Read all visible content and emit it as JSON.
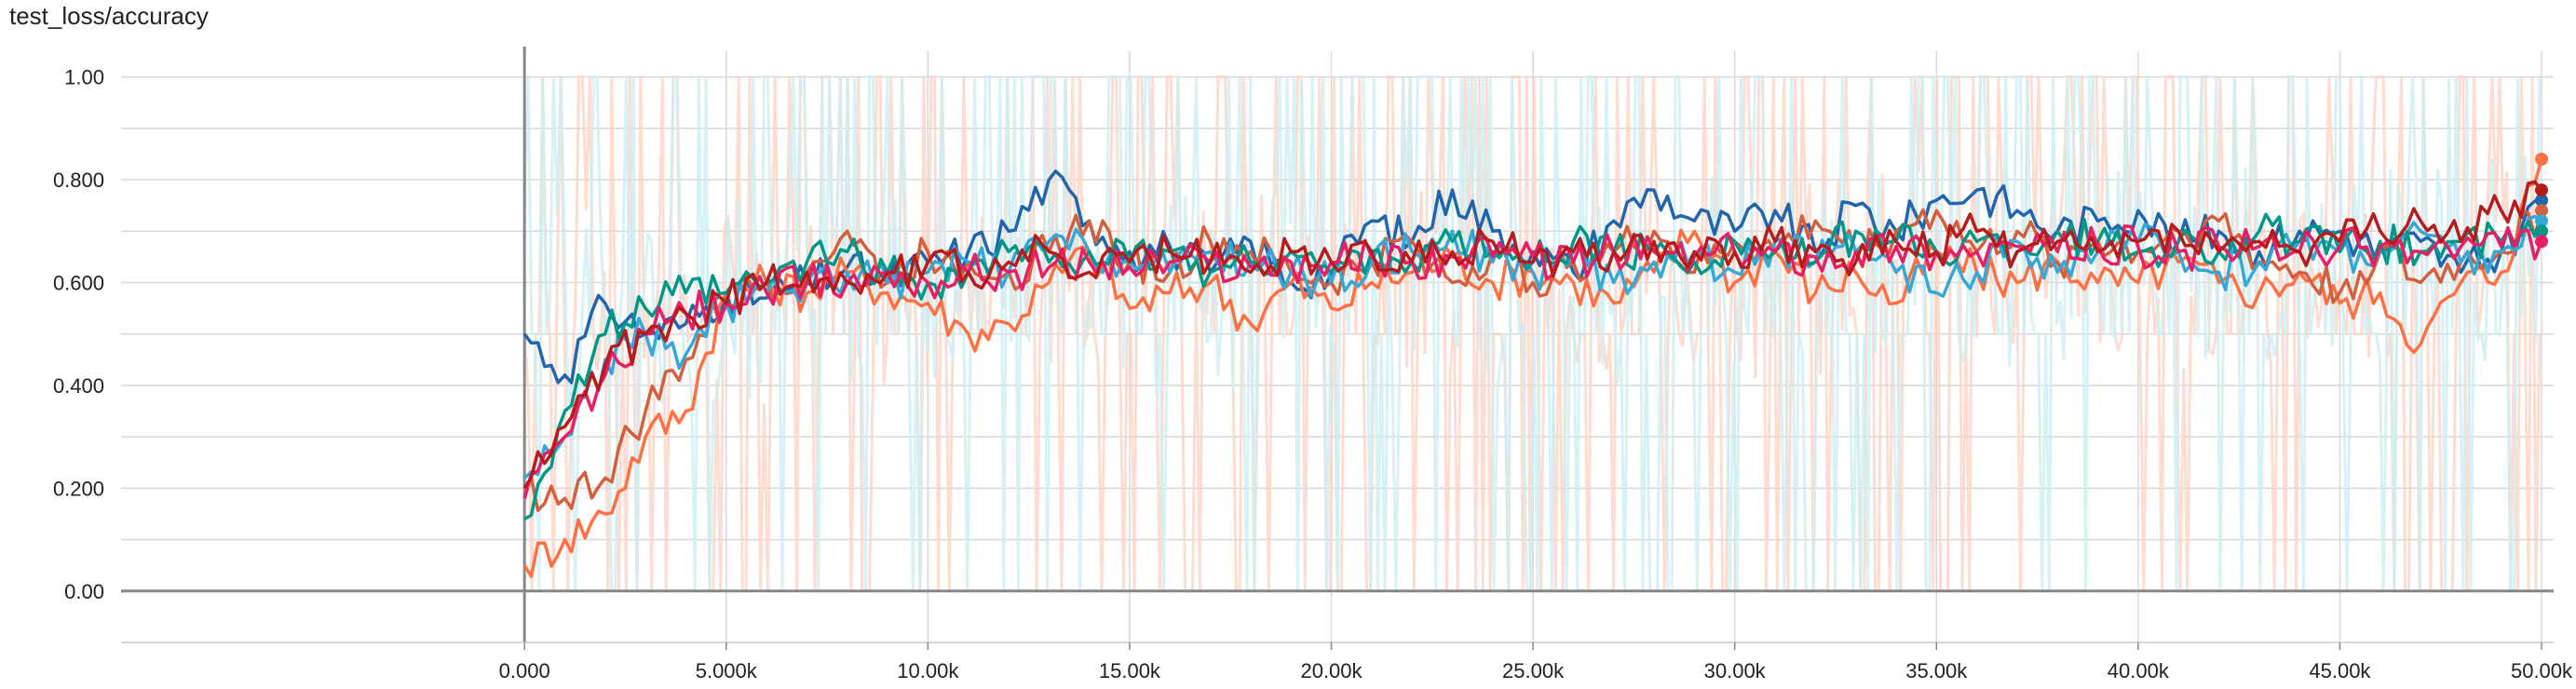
{
  "chart_data": {
    "type": "line",
    "title": "test_loss/accuracy",
    "xlabel": "",
    "ylabel": "",
    "x_range": [
      -10000,
      50300
    ],
    "y_range": [
      -0.1,
      1.05
    ],
    "x_ticks": [
      0,
      5000,
      10000,
      15000,
      20000,
      25000,
      30000,
      35000,
      40000,
      45000,
      50000
    ],
    "x_tick_labels": [
      "0.000",
      "5.000k",
      "10.00k",
      "15.00k",
      "20.00k",
      "25.00k",
      "30.00k",
      "35.00k",
      "40.00k",
      "45.00k",
      "50.00k"
    ],
    "y_ticks": [
      0,
      0.2,
      0.4,
      0.6,
      0.8,
      1.0
    ],
    "y_tick_labels": [
      "0.00",
      "0.200",
      "0.400",
      "0.600",
      "0.800",
      "1.00"
    ],
    "grid": true,
    "legend": "none",
    "raw_band_colors": [
      "#fcd5c7",
      "#cdeef3"
    ],
    "x": [
      0,
      1000,
      2000,
      3000,
      4000,
      5000,
      6000,
      7000,
      8000,
      9000,
      10000,
      11000,
      12000,
      13000,
      14000,
      15000,
      16000,
      17000,
      18000,
      19000,
      20000,
      21000,
      22000,
      23000,
      24000,
      25000,
      26000,
      27000,
      28000,
      29000,
      30000,
      31000,
      32000,
      33000,
      34000,
      35000,
      36000,
      37000,
      38000,
      39000,
      40000,
      41000,
      42000,
      43000,
      44000,
      45000,
      46000,
      47000,
      48000,
      49000,
      50000
    ],
    "series": [
      {
        "color": "#2166ac",
        "values": [
          0.5,
          0.42,
          0.56,
          0.5,
          0.52,
          0.58,
          0.57,
          0.6,
          0.63,
          0.6,
          0.64,
          0.66,
          0.7,
          0.8,
          0.72,
          0.66,
          0.67,
          0.62,
          0.68,
          0.6,
          0.62,
          0.72,
          0.68,
          0.78,
          0.7,
          0.66,
          0.62,
          0.72,
          0.78,
          0.72,
          0.7,
          0.74,
          0.66,
          0.75,
          0.7,
          0.76,
          0.78,
          0.74,
          0.7,
          0.72,
          0.74,
          0.68,
          0.7,
          0.66,
          0.7,
          0.7,
          0.66,
          0.68,
          0.62,
          0.66,
          0.76
        ]
      },
      {
        "color": "#ff7043",
        "values": [
          0.05,
          0.1,
          0.15,
          0.3,
          0.35,
          0.58,
          0.6,
          0.58,
          0.62,
          0.58,
          0.56,
          0.5,
          0.52,
          0.6,
          0.66,
          0.55,
          0.58,
          0.6,
          0.52,
          0.6,
          0.55,
          0.6,
          0.62,
          0.65,
          0.6,
          0.62,
          0.6,
          0.56,
          0.62,
          0.7,
          0.6,
          0.66,
          0.58,
          0.62,
          0.56,
          0.66,
          0.62,
          0.6,
          0.64,
          0.6,
          0.6,
          0.64,
          0.6,
          0.58,
          0.62,
          0.56,
          0.58,
          0.48,
          0.6,
          0.62,
          0.84
        ]
      },
      {
        "color": "#d45f3c",
        "values": [
          0.2,
          0.18,
          0.22,
          0.35,
          0.45,
          0.56,
          0.6,
          0.62,
          0.7,
          0.6,
          0.66,
          0.64,
          0.62,
          0.66,
          0.72,
          0.64,
          0.62,
          0.68,
          0.66,
          0.62,
          0.6,
          0.64,
          0.68,
          0.6,
          0.66,
          0.6,
          0.64,
          0.66,
          0.7,
          0.62,
          0.68,
          0.66,
          0.72,
          0.66,
          0.7,
          0.74,
          0.66,
          0.7,
          0.64,
          0.68,
          0.66,
          0.7,
          0.72,
          0.64,
          0.62,
          0.58,
          0.66,
          0.6,
          0.64,
          0.66,
          0.74
        ]
      },
      {
        "color": "#35a8d8",
        "values": [
          0.22,
          0.3,
          0.45,
          0.5,
          0.46,
          0.56,
          0.58,
          0.6,
          0.62,
          0.6,
          0.62,
          0.64,
          0.62,
          0.68,
          0.66,
          0.64,
          0.62,
          0.66,
          0.64,
          0.62,
          0.6,
          0.64,
          0.66,
          0.7,
          0.64,
          0.62,
          0.66,
          0.6,
          0.64,
          0.66,
          0.62,
          0.68,
          0.64,
          0.66,
          0.62,
          0.58,
          0.62,
          0.68,
          0.62,
          0.66,
          0.68,
          0.66,
          0.62,
          0.64,
          0.68,
          0.66,
          0.66,
          0.7,
          0.64,
          0.66,
          0.72
        ]
      },
      {
        "color": "#009688",
        "values": [
          0.14,
          0.35,
          0.5,
          0.55,
          0.58,
          0.58,
          0.6,
          0.64,
          0.66,
          0.62,
          0.6,
          0.62,
          0.66,
          0.64,
          0.66,
          0.64,
          0.66,
          0.62,
          0.64,
          0.66,
          0.62,
          0.66,
          0.64,
          0.68,
          0.66,
          0.64,
          0.68,
          0.66,
          0.66,
          0.64,
          0.68,
          0.66,
          0.64,
          0.7,
          0.68,
          0.66,
          0.68,
          0.66,
          0.7,
          0.68,
          0.66,
          0.68,
          0.66,
          0.7,
          0.68,
          0.66,
          0.68,
          0.66,
          0.68,
          0.68,
          0.7
        ]
      },
      {
        "color": "#e91e63",
        "values": [
          0.18,
          0.3,
          0.42,
          0.5,
          0.54,
          0.56,
          0.58,
          0.6,
          0.6,
          0.62,
          0.6,
          0.62,
          0.62,
          0.63,
          0.64,
          0.63,
          0.64,
          0.64,
          0.63,
          0.64,
          0.64,
          0.65,
          0.64,
          0.65,
          0.65,
          0.65,
          0.64,
          0.66,
          0.66,
          0.65,
          0.66,
          0.66,
          0.65,
          0.66,
          0.67,
          0.66,
          0.66,
          0.67,
          0.66,
          0.67,
          0.67,
          0.66,
          0.67,
          0.67,
          0.66,
          0.67,
          0.67,
          0.66,
          0.67,
          0.67,
          0.68
        ]
      },
      {
        "color": "#b71c1c",
        "values": [
          0.2,
          0.32,
          0.44,
          0.5,
          0.54,
          0.56,
          0.6,
          0.62,
          0.6,
          0.62,
          0.64,
          0.62,
          0.64,
          0.66,
          0.62,
          0.64,
          0.66,
          0.64,
          0.62,
          0.66,
          0.64,
          0.66,
          0.64,
          0.66,
          0.68,
          0.64,
          0.66,
          0.66,
          0.68,
          0.66,
          0.66,
          0.68,
          0.66,
          0.64,
          0.68,
          0.66,
          0.7,
          0.66,
          0.68,
          0.66,
          0.68,
          0.7,
          0.66,
          0.68,
          0.66,
          0.68,
          0.7,
          0.72,
          0.68,
          0.74,
          0.78
        ]
      }
    ]
  }
}
